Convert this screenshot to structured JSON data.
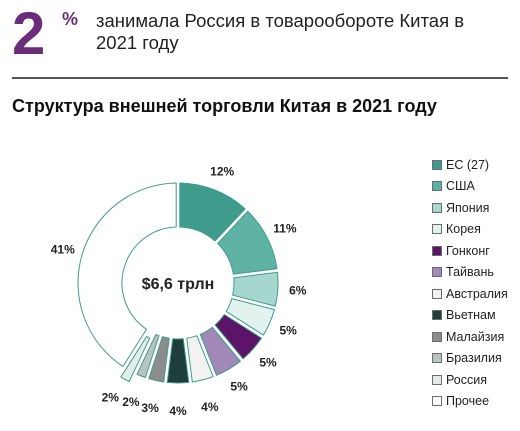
{
  "header": {
    "stat_value": "2",
    "stat_unit": "%",
    "stat_text": "занимала Россия в товарообороте Китая в 2021 году"
  },
  "chart_data": {
    "type": "pie",
    "donut": true,
    "title": "Структура внешней торговли Китая в 2021 году",
    "center_label": "$6,6 трлн",
    "legend_position": "right",
    "slices": [
      {
        "name": "ЕС (27)",
        "value": 12,
        "label": "12%",
        "color": "#3f9c8c"
      },
      {
        "name": "США",
        "value": 11,
        "label": "11%",
        "color": "#5fb3a5"
      },
      {
        "name": "Япония",
        "value": 6,
        "label": "6%",
        "color": "#a5d7cf"
      },
      {
        "name": "Корея",
        "value": 5,
        "label": "5%",
        "color": "#e1f2ef"
      },
      {
        "name": "Гонконг",
        "value": 5,
        "label": "5%",
        "color": "#5b1467"
      },
      {
        "name": "Тайвань",
        "value": 5,
        "label": "5%",
        "color": "#a188b8"
      },
      {
        "name": "Австралия",
        "value": 4,
        "label": "4%",
        "color": "#f2f2f2"
      },
      {
        "name": "Вьетнам",
        "value": 4,
        "label": "4%",
        "color": "#1f3d3a"
      },
      {
        "name": "Малайзия",
        "value": 3,
        "label": "3%",
        "color": "#8c8c8c"
      },
      {
        "name": "Бразилия",
        "value": 2,
        "label": "2%",
        "color": "#b8c4c1"
      },
      {
        "name": "Россия",
        "value": 2,
        "label": "2%",
        "color": "#e3ecea"
      },
      {
        "name": "Прочее",
        "value": 41,
        "label": "41%",
        "color": "#ffffff"
      }
    ],
    "highlight": "Россия"
  }
}
